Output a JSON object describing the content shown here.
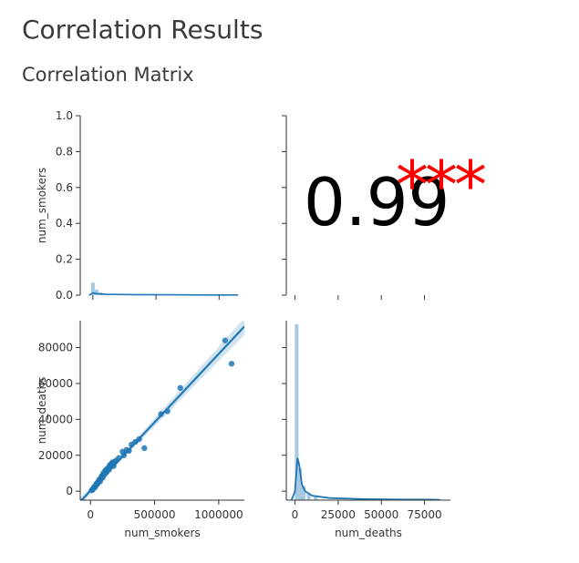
{
  "header": {
    "title": "Correlation Results",
    "subtitle": "Correlation Matrix"
  },
  "chart_data": {
    "type": "pairplot",
    "variables": [
      "num_smokers",
      "num_deaths"
    ],
    "colors": {
      "series": "#1f77b4",
      "hist": "#a6c8e0",
      "band": "#c7dcec",
      "annotation_value": "#000000",
      "annotation_stars": "#ff0000",
      "axis": "#333333"
    },
    "panels": [
      {
        "position": "top-left",
        "kind": "histogram_kde",
        "variable": "num_smokers",
        "ylabel": "num_smokers",
        "ylim": [
          0,
          1
        ],
        "y_ticks": [
          {
            "value": 0.0,
            "label": "0.0"
          },
          {
            "value": 0.2,
            "label": "0.2"
          },
          {
            "value": 0.4,
            "label": "0.4"
          },
          {
            "value": 0.6,
            "label": "0.6"
          },
          {
            "value": 0.8,
            "label": "0.8"
          },
          {
            "value": 1.0,
            "label": "1.0"
          }
        ],
        "xlim": [
          -100000,
          1200000
        ],
        "hist_bins": [
          {
            "x": 0,
            "height": 0.07
          },
          {
            "x": 30000,
            "height": 0.03
          },
          {
            "x": 60000,
            "height": 0.015
          },
          {
            "x": 100000,
            "height": 0.008
          }
        ],
        "kde": [
          [
            -30000,
            0
          ],
          [
            0,
            0.012
          ],
          [
            30000,
            0.008
          ],
          [
            100000,
            0.005
          ],
          [
            300000,
            0.003
          ],
          [
            600000,
            0.002
          ],
          [
            900000,
            0.001
          ],
          [
            1150000,
            0.001
          ]
        ]
      },
      {
        "position": "top-right",
        "kind": "annotation",
        "value_label": "0.99",
        "stars_label": "***"
      },
      {
        "position": "bottom-left",
        "kind": "scatter_regression",
        "xlabel": "num_smokers",
        "ylabel": "num_deaths",
        "xlim": [
          -80000,
          1200000
        ],
        "ylim": [
          -5000,
          95000
        ],
        "x_ticks": [
          {
            "value": 0,
            "label": "0"
          },
          {
            "value": 500000,
            "label": "500000"
          },
          {
            "value": 1000000,
            "label": "1000000"
          }
        ],
        "y_ticks": [
          {
            "value": 0,
            "label": "0"
          },
          {
            "value": 20000,
            "label": "20000"
          },
          {
            "value": 40000,
            "label": "40000"
          },
          {
            "value": 60000,
            "label": "60000"
          },
          {
            "value": 80000,
            "label": "80000"
          }
        ],
        "points": [
          [
            10000,
            500
          ],
          [
            20000,
            1200
          ],
          [
            30000,
            2500
          ],
          [
            40000,
            3000
          ],
          [
            50000,
            4500
          ],
          [
            60000,
            5000
          ],
          [
            70000,
            6500
          ],
          [
            80000,
            7000
          ],
          [
            90000,
            8500
          ],
          [
            100000,
            10000
          ],
          [
            110000,
            9500
          ],
          [
            120000,
            11000
          ],
          [
            130000,
            12500
          ],
          [
            140000,
            13000
          ],
          [
            150000,
            14500
          ],
          [
            160000,
            15000
          ],
          [
            170000,
            16000
          ],
          [
            180000,
            14000
          ],
          [
            200000,
            17000
          ],
          [
            220000,
            18500
          ],
          [
            250000,
            22000
          ],
          [
            260000,
            20000
          ],
          [
            280000,
            23000
          ],
          [
            300000,
            22500
          ],
          [
            320000,
            26000
          ],
          [
            350000,
            27500
          ],
          [
            380000,
            29000
          ],
          [
            420000,
            24000
          ],
          [
            550000,
            43000
          ],
          [
            600000,
            44500
          ],
          [
            700000,
            57500
          ],
          [
            1050000,
            84000
          ],
          [
            1100000,
            71000
          ],
          [
            25000,
            1800
          ],
          [
            45000,
            3800
          ],
          [
            65000,
            6000
          ],
          [
            85000,
            8000
          ],
          [
            105000,
            9000
          ],
          [
            125000,
            10500
          ],
          [
            145000,
            12000
          ],
          [
            95000,
            7500
          ],
          [
            75000,
            5500
          ],
          [
            55000,
            4000
          ],
          [
            35000,
            2200
          ],
          [
            15000,
            800
          ],
          [
            115000,
            11500
          ],
          [
            135000,
            12200
          ],
          [
            155000,
            13800
          ],
          [
            175000,
            15500
          ],
          [
            190000,
            16500
          ]
        ],
        "regression": {
          "slope": 0.0762,
          "intercept": 300
        }
      },
      {
        "position": "bottom-right",
        "kind": "histogram_kde",
        "variable": "num_deaths",
        "xlabel": "num_deaths",
        "xlim": [
          -5000,
          90000
        ],
        "x_ticks": [
          {
            "value": 0,
            "label": "0"
          },
          {
            "value": 25000,
            "label": "25000"
          },
          {
            "value": 50000,
            "label": "50000"
          },
          {
            "value": 75000,
            "label": "75000"
          }
        ],
        "hist_bins": [
          {
            "x": 1000,
            "height": 1.0
          },
          {
            "x": 3000,
            "height": 0.18
          },
          {
            "x": 5000,
            "height": 0.08
          },
          {
            "x": 8000,
            "height": 0.04
          },
          {
            "x": 12000,
            "height": 0.02
          }
        ],
        "kde": [
          [
            -2000,
            0
          ],
          [
            0,
            0.05
          ],
          [
            1500,
            0.24
          ],
          [
            2500,
            0.2
          ],
          [
            4000,
            0.09
          ],
          [
            6000,
            0.05
          ],
          [
            10000,
            0.025
          ],
          [
            20000,
            0.012
          ],
          [
            40000,
            0.006
          ],
          [
            60000,
            0.004
          ],
          [
            80000,
            0.003
          ],
          [
            84000,
            0.002
          ]
        ]
      }
    ]
  }
}
